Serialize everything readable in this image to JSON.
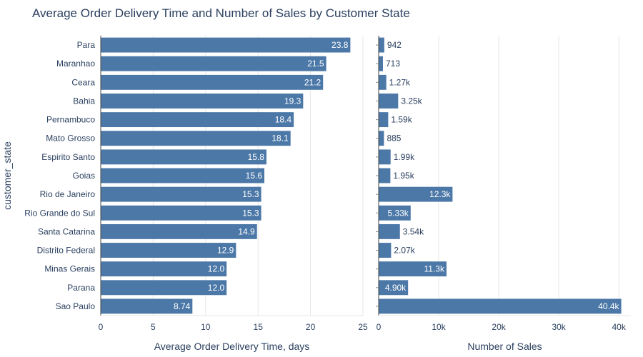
{
  "title": "Average Order Delivery Time and Number of Sales by Customer State",
  "colors": {
    "bar": "#4c78a8",
    "grid": "#e6e6e6",
    "axis": "#2a3f5f",
    "label_inside": "#ffffff",
    "background": "#ffffff"
  },
  "chart_data": [
    {
      "type": "bar",
      "orientation": "horizontal",
      "xlabel": "Average Order Delivery Time, days",
      "ylabel": "customer_state",
      "xlim": [
        0,
        25
      ],
      "xticks": [
        0,
        5,
        10,
        15,
        20,
        25
      ],
      "xtick_labels": [
        "0",
        "5",
        "10",
        "15",
        "20",
        "25"
      ],
      "categories": [
        "Para",
        "Maranhao",
        "Ceara",
        "Bahia",
        "Pernambuco",
        "Mato Grosso",
        "Espirito Santo",
        "Goias",
        "Rio de Janeiro",
        "Rio Grande do Sul",
        "Santa Catarina",
        "Distrito Federal",
        "Minas Gerais",
        "Parana",
        "Sao Paulo"
      ],
      "values": [
        23.8,
        21.5,
        21.2,
        19.3,
        18.4,
        18.1,
        15.8,
        15.6,
        15.3,
        15.3,
        14.9,
        12.9,
        12.0,
        12.0,
        8.74
      ],
      "value_labels": [
        "23.8",
        "21.5",
        "21.2",
        "19.3",
        "18.4",
        "18.1",
        "15.8",
        "15.6",
        "15.3",
        "15.3",
        "14.9",
        "12.9",
        "12.0",
        "12.0",
        "8.74"
      ],
      "grid": true
    },
    {
      "type": "bar",
      "orientation": "horizontal",
      "xlabel": "Number of Sales",
      "xlim": [
        0,
        42000
      ],
      "xticks": [
        0,
        10000,
        20000,
        30000,
        40000
      ],
      "xtick_labels": [
        "0",
        "10k",
        "20k",
        "30k",
        "40k"
      ],
      "categories": [
        "Para",
        "Maranhao",
        "Ceara",
        "Bahia",
        "Pernambuco",
        "Mato Grosso",
        "Espirito Santo",
        "Goias",
        "Rio de Janeiro",
        "Rio Grande do Sul",
        "Santa Catarina",
        "Distrito Federal",
        "Minas Gerais",
        "Parana",
        "Sao Paulo"
      ],
      "values": [
        942,
        713,
        1270,
        3250,
        1590,
        885,
        1990,
        1950,
        12300,
        5330,
        3540,
        2070,
        11300,
        4900,
        40400
      ],
      "value_labels": [
        "942",
        "713",
        "1.27k",
        "3.25k",
        "1.59k",
        "885",
        "1.99k",
        "1.95k",
        "12.3k",
        "5.33k",
        "3.54k",
        "2.07k",
        "11.3k",
        "4.90k",
        "40.4k"
      ],
      "grid": true
    }
  ]
}
